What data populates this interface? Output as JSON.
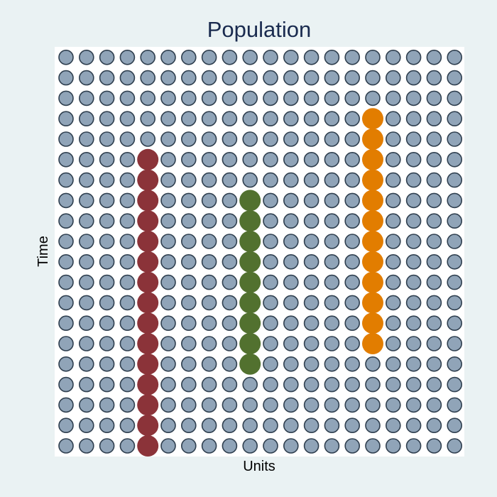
{
  "chart_data": {
    "type": "scatter",
    "title": "Population",
    "xlabel": "Units",
    "ylabel": "Time",
    "grid": false,
    "legend": "none",
    "x_count": 20,
    "y_count": 20,
    "base_color": "#90a4b8",
    "base_stroke": "#2f3f4f",
    "highlight_series": [
      {
        "x": 5,
        "y_from": 1,
        "y_to": 15,
        "color": "#8b3339"
      },
      {
        "x": 10,
        "y_from": 5,
        "y_to": 13,
        "color": "#52712f"
      },
      {
        "x": 16,
        "y_from": 6,
        "y_to": 17,
        "color": "#e27d00"
      }
    ]
  }
}
